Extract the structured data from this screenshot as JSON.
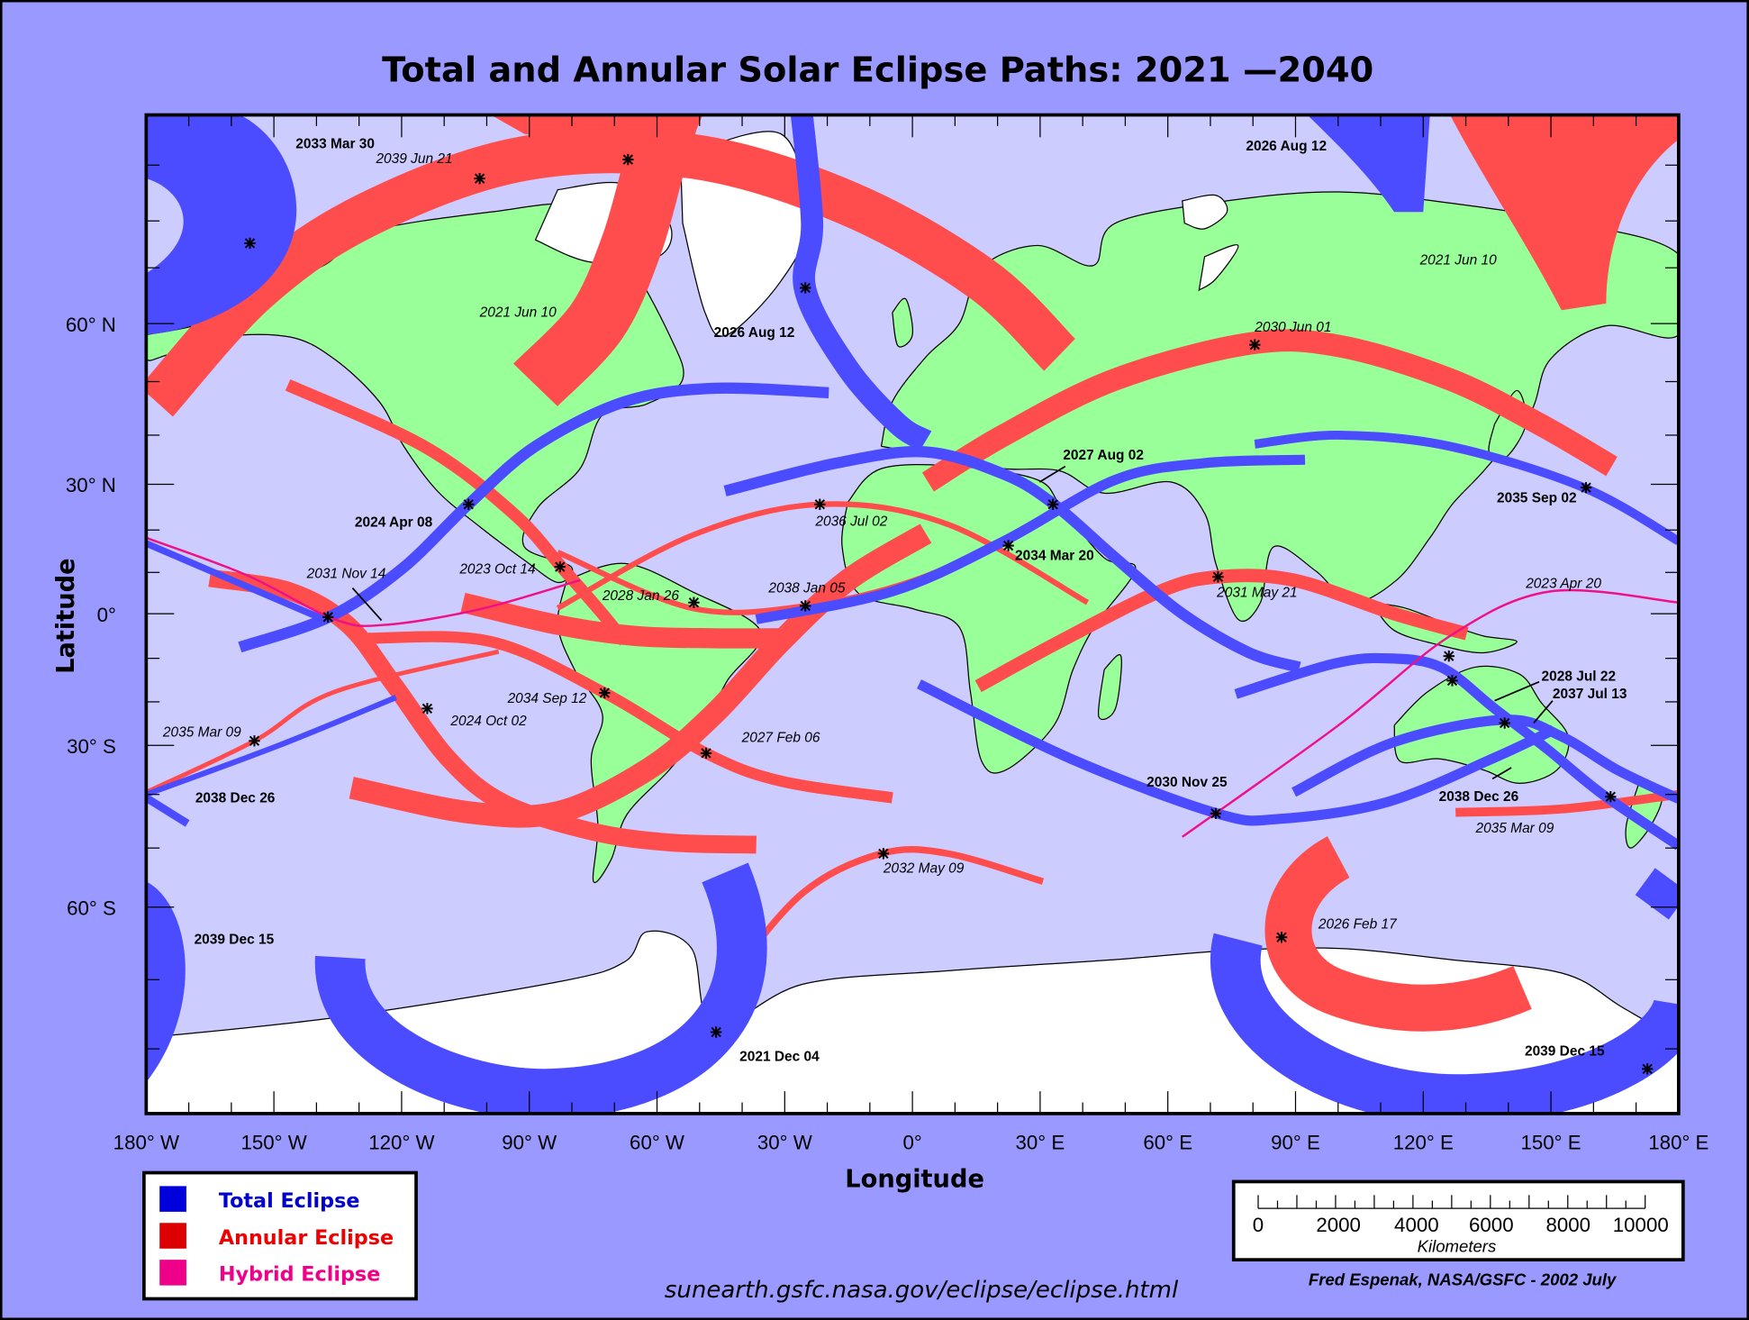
{
  "title": "Total and Annular Solar Eclipse Paths:  2021 —2040",
  "axes": {
    "xlabel": "Longitude",
    "ylabel": "Latitude",
    "x_ticks": [
      "180° W",
      "150° W",
      "120° W",
      "90° W",
      "60° W",
      "30° W",
      "0°",
      "30° E",
      "60° E",
      "90° E",
      "120° E",
      "150° E",
      "180° E"
    ],
    "y_ticks": [
      "60° N",
      "30° N",
      "0°",
      "30° S",
      "60° S"
    ]
  },
  "colors": {
    "background": "#9999ff",
    "ocean": "#ccccff",
    "land": "#99ff99",
    "ice": "#ffffff",
    "total": "#4b4bff",
    "annular": "#ff4c4c",
    "hybrid": "#ee1188"
  },
  "legend": [
    {
      "label": "Total Eclipse",
      "swatch": "#0000dd",
      "text_color": "#0000cc"
    },
    {
      "label": "Annular Eclipse",
      "swatch": "#dd0000",
      "text_color": "#ee0000"
    },
    {
      "label": "Hybrid Eclipse",
      "swatch": "#ee0088",
      "text_color": "#ee0088"
    }
  ],
  "scale_bar": {
    "ticks": [
      "0",
      "2000",
      "4000",
      "6000",
      "8000",
      "10000"
    ],
    "unit": "Kilometers"
  },
  "url": "sunearth.gsfc.nasa.gov/eclipse/eclipse.html",
  "credit": "Fred Espenak, NASA/GSFC - 2002 July",
  "eclipse_labels": [
    {
      "date": "2033 Mar 30",
      "type": "total"
    },
    {
      "date": "2026 Aug 12",
      "type": "total"
    },
    {
      "date": "2026 Aug 12",
      "type": "total"
    },
    {
      "date": "2024 Apr 08",
      "type": "total"
    },
    {
      "date": "2027 Aug 02",
      "type": "total"
    },
    {
      "date": "2034 Mar 20",
      "type": "total"
    },
    {
      "date": "2035 Sep 02",
      "type": "total"
    },
    {
      "date": "2028 Jul 22",
      "type": "total"
    },
    {
      "date": "2037 Jul 13",
      "type": "total"
    },
    {
      "date": "2030 Nov 25",
      "type": "total"
    },
    {
      "date": "2038 Dec 26",
      "type": "total"
    },
    {
      "date": "2038 Dec 26",
      "type": "total"
    },
    {
      "date": "2039 Dec 15",
      "type": "total"
    },
    {
      "date": "2021 Dec 04",
      "type": "total"
    },
    {
      "date": "2039 Dec 15",
      "type": "total"
    },
    {
      "date": "2039 Jun 21",
      "type": "annular"
    },
    {
      "date": "2021 Jun 10",
      "type": "annular"
    },
    {
      "date": "2021 Jun 10",
      "type": "annular"
    },
    {
      "date": "2030 Jun 01",
      "type": "annular"
    },
    {
      "date": "2036 Jul 02",
      "type": "annular"
    },
    {
      "date": "2031 Nov 14",
      "type": "hybrid"
    },
    {
      "date": "2023 Oct 14",
      "type": "annular"
    },
    {
      "date": "2028 Jan 26",
      "type": "annular"
    },
    {
      "date": "2038 Jan 05",
      "type": "annular"
    },
    {
      "date": "2031 May 21",
      "type": "annular"
    },
    {
      "date": "2023 Apr 20",
      "type": "hybrid"
    },
    {
      "date": "2034 Sep 12",
      "type": "annular"
    },
    {
      "date": "2024 Oct 02",
      "type": "annular"
    },
    {
      "date": "2035 Mar 09",
      "type": "annular"
    },
    {
      "date": "2027 Feb 06",
      "type": "annular"
    },
    {
      "date": "2032 May 09",
      "type": "annular"
    },
    {
      "date": "2026 Feb 17",
      "type": "annular"
    },
    {
      "date": "2035 Mar 09",
      "type": "annular"
    }
  ]
}
